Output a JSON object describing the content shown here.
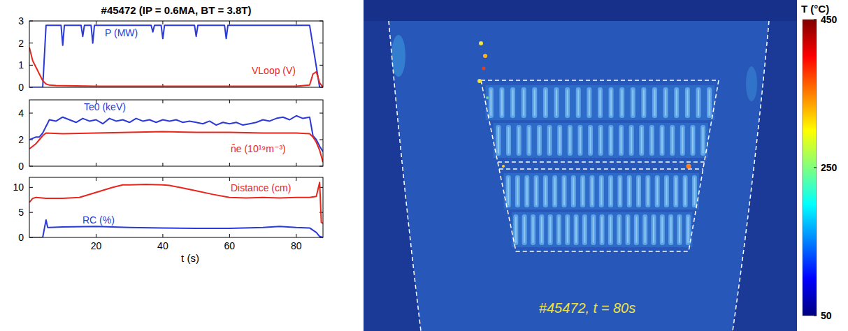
{
  "chart_data": [
    {
      "type": "line",
      "title": "#45472 (IP = 0.6MA, BT = 3.8T)",
      "xlim": [
        0,
        88
      ],
      "xticks": [
        20,
        40,
        60,
        80
      ],
      "ylim": [
        0,
        3
      ],
      "yticks": [
        0,
        1,
        2,
        3
      ],
      "tick_labels": "y",
      "series": [
        {
          "name": "P (MW)",
          "color": "#2b3ad6",
          "x": [
            0,
            4,
            5,
            6,
            9.5,
            10,
            10.5,
            15.5,
            16,
            16.5,
            18.5,
            19,
            19.5,
            36.5,
            37,
            37.5,
            39.5,
            40,
            40.5,
            49.5,
            50,
            50.5,
            58.5,
            59,
            59.5,
            84,
            87,
            88
          ],
          "values": [
            0,
            0,
            2.8,
            2.8,
            2.8,
            1.9,
            2.8,
            2.8,
            2.3,
            2.8,
            2.8,
            2.0,
            2.8,
            2.8,
            2.5,
            2.8,
            2.8,
            2.2,
            2.8,
            2.8,
            2.3,
            2.8,
            2.8,
            2.2,
            2.8,
            2.8,
            0,
            0
          ]
        },
        {
          "name": "VLoop (V)",
          "color": "#e8261c",
          "x": [
            0,
            1,
            2,
            3,
            4,
            5,
            6,
            8,
            20,
            40,
            60,
            80,
            84,
            85,
            86,
            87,
            88
          ],
          "values": [
            1.8,
            1.2,
            0.9,
            0.6,
            0.3,
            0.15,
            0.1,
            0.08,
            0.05,
            0.05,
            0.05,
            0.05,
            0.1,
            0.6,
            0.7,
            0.2,
            0
          ]
        }
      ]
    },
    {
      "type": "line",
      "xlim": [
        0,
        88
      ],
      "xticks": [
        20,
        40,
        60,
        80
      ],
      "ylim": [
        0,
        5
      ],
      "yticks": [
        0,
        2,
        4
      ],
      "tick_labels": "y",
      "series": [
        {
          "name": "Te0 (keV)",
          "color": "#2b3ad6",
          "x": [
            0,
            1,
            2,
            3,
            4,
            5,
            6,
            8,
            10,
            12,
            14,
            16,
            18,
            20,
            22,
            24,
            26,
            28,
            30,
            32,
            34,
            36,
            38,
            40,
            42,
            44,
            46,
            48,
            50,
            52,
            54,
            56,
            58,
            60,
            62,
            64,
            66,
            68,
            70,
            72,
            74,
            76,
            78,
            80,
            82,
            84,
            85,
            86,
            87,
            88
          ],
          "values": [
            2.0,
            2.1,
            2.2,
            2.2,
            2.5,
            3.0,
            3.5,
            3.4,
            3.7,
            3.5,
            3.3,
            3.6,
            3.4,
            3.5,
            3.2,
            3.6,
            3.4,
            3.5,
            3.3,
            3.6,
            3.4,
            3.5,
            3.3,
            3.5,
            3.4,
            3.5,
            3.3,
            3.4,
            3.3,
            3.2,
            3.4,
            3.1,
            3.3,
            3.2,
            3.3,
            3.1,
            3.2,
            3.3,
            3.5,
            3.4,
            3.6,
            3.7,
            3.5,
            3.8,
            3.6,
            3.7,
            2.3,
            2.0,
            1.5,
            1.1
          ]
        },
        {
          "name": "n̄e (10¹⁹m⁻³)",
          "color": "#e8261c",
          "x": [
            0,
            2,
            3,
            4,
            5,
            10,
            20,
            30,
            40,
            50,
            60,
            70,
            80,
            84,
            85,
            86,
            87,
            88
          ],
          "values": [
            1.3,
            1.7,
            2.0,
            2.3,
            2.5,
            2.45,
            2.5,
            2.55,
            2.6,
            2.55,
            2.55,
            2.5,
            2.5,
            2.45,
            2.2,
            1.8,
            1.2,
            0.3
          ]
        }
      ]
    },
    {
      "type": "line",
      "xlabel": "t (s)",
      "xlim": [
        0,
        88
      ],
      "xticks": [
        20,
        40,
        60,
        80
      ],
      "ylim": [
        0,
        12
      ],
      "yticks": [
        0,
        5,
        10
      ],
      "series": [
        {
          "name": "Distance (cm)",
          "color": "#e8261c",
          "x": [
            0,
            1,
            2,
            5,
            10,
            15,
            20,
            25,
            28,
            30,
            35,
            40,
            42,
            45,
            50,
            55,
            60,
            65,
            70,
            75,
            80,
            84,
            86,
            87,
            87.5,
            88
          ],
          "values": [
            7.0,
            7.8,
            8.0,
            7.8,
            7.8,
            8.0,
            9.0,
            10.0,
            10.5,
            10.5,
            10.6,
            10.5,
            10.4,
            10.0,
            9.3,
            8.6,
            8.0,
            7.9,
            8.0,
            7.9,
            8.0,
            8.0,
            8.2,
            11.0,
            3.0,
            2.8
          ]
        },
        {
          "name": "RC (%)",
          "color": "#2b3ad6",
          "x": [
            0,
            4,
            5,
            5.5,
            6,
            10,
            20,
            30,
            40,
            50,
            60,
            70,
            75,
            80,
            84,
            86,
            87,
            88
          ],
          "values": [
            0,
            0,
            3.5,
            2.0,
            2.0,
            2.1,
            2.2,
            2.0,
            1.9,
            1.8,
            1.8,
            2.0,
            2.2,
            2.0,
            1.9,
            1.0,
            0.2,
            0
          ]
        }
      ]
    },
    {
      "type": "image",
      "label": "#45472, t = 80s",
      "colorbar": {
        "title": "T (°C)",
        "range": [
          50,
          450
        ],
        "ticks": [
          50,
          250,
          450
        ]
      }
    }
  ]
}
